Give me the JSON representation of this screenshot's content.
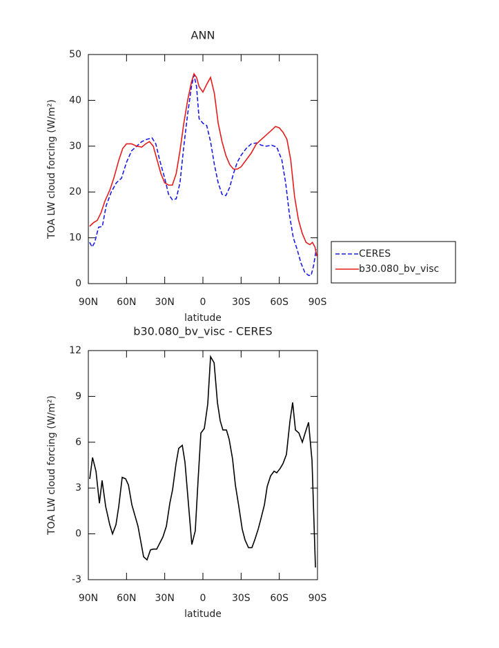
{
  "chart_data": [
    {
      "type": "line",
      "title": "ANN",
      "xlabel": "latitude",
      "ylabel": "TOA LW cloud forcing (W/m²)",
      "xlim": [
        90,
        -90
      ],
      "xticks": [
        {
          "value": 90,
          "label": "90N"
        },
        {
          "value": 60,
          "label": "60N"
        },
        {
          "value": 30,
          "label": "30N"
        },
        0,
        {
          "value": -30,
          "label": "30S"
        },
        {
          "value": -60,
          "label": "60S"
        },
        {
          "value": -90,
          "label": "90S"
        }
      ],
      "ylim": [
        0,
        50
      ],
      "yticks": [
        0,
        10,
        20,
        30,
        40,
        50
      ],
      "legend": "right",
      "series": [
        {
          "name": "CERES",
          "color": "#1a1ae6",
          "linestyle": "dashed",
          "x": [
            89,
            87,
            85,
            82,
            79,
            76,
            72,
            68,
            64,
            60,
            56,
            52,
            48,
            44,
            40,
            37,
            34,
            30,
            27,
            24,
            21,
            18,
            15,
            12,
            9,
            7,
            5,
            3,
            0,
            -3,
            -6,
            -9,
            -12,
            -15,
            -18,
            -21,
            -24,
            -27,
            -30,
            -34,
            -38,
            -42,
            -46,
            -50,
            -54,
            -58,
            -62,
            -65,
            -68,
            -71,
            -74,
            -77,
            -80,
            -83,
            -85,
            -87,
            -89
          ],
          "values": [
            9,
            8,
            9,
            12.3,
            12.5,
            17,
            20,
            22,
            23,
            26.5,
            29,
            30,
            31,
            31.5,
            31.8,
            30.5,
            27,
            23,
            19.5,
            18.3,
            18.5,
            22,
            30,
            37,
            43,
            45.5,
            43,
            36,
            35,
            34.5,
            31,
            26,
            22,
            19.5,
            19.2,
            21,
            24,
            26.5,
            28,
            29.5,
            30.5,
            30.7,
            30.2,
            30,
            30.2,
            29.8,
            27,
            22,
            15,
            10,
            7.5,
            4.5,
            2.5,
            1.8,
            1.8,
            4,
            7.5
          ]
        },
        {
          "name": "b30.080_bv_visc",
          "color": "#e61a1a",
          "linestyle": "solid",
          "x": [
            89,
            86,
            83,
            80,
            77,
            73,
            70,
            66,
            63,
            60,
            56,
            52,
            48,
            45,
            42,
            39,
            36,
            33,
            30,
            27,
            24,
            21,
            18,
            15,
            12,
            9,
            7,
            5,
            3,
            0,
            -3,
            -6,
            -9,
            -12,
            -15,
            -18,
            -21,
            -24,
            -27,
            -30,
            -34,
            -38,
            -42,
            -46,
            -50,
            -54,
            -57,
            -60,
            -63,
            -66,
            -69,
            -72,
            -75,
            -78,
            -81,
            -84,
            -86,
            -88,
            -89.5
          ],
          "values": [
            12.5,
            13.3,
            13.8,
            15.5,
            18,
            20.5,
            23,
            27,
            29.5,
            30.5,
            30.5,
            30,
            29.8,
            30.5,
            31,
            30,
            27,
            24,
            22,
            21.5,
            21.5,
            24,
            29,
            35,
            40,
            44,
            45.8,
            45,
            43,
            41.8,
            43.5,
            45,
            41.5,
            35,
            31,
            28,
            26,
            25,
            25,
            25.5,
            27,
            28.5,
            30.5,
            31.5,
            32.5,
            33.5,
            34.3,
            34,
            33,
            31.5,
            27,
            19,
            14,
            11,
            9,
            8.5,
            9,
            8,
            6
          ]
        }
      ]
    },
    {
      "type": "line",
      "title": "b30.080_bv_visc - CERES",
      "xlabel": "latitude",
      "ylabel": "TOA LW cloud forcing (W/m²)",
      "xlim": [
        90,
        -90
      ],
      "xticks": [
        {
          "value": 90,
          "label": "90N"
        },
        {
          "value": 60,
          "label": "60N"
        },
        {
          "value": 30,
          "label": "30N"
        },
        0,
        {
          "value": -30,
          "label": "30S"
        },
        {
          "value": -60,
          "label": "60S"
        },
        {
          "value": -90,
          "label": "90S"
        }
      ],
      "ylim": [
        -3,
        12
      ],
      "yticks": [
        -3,
        0,
        3,
        6,
        9,
        12
      ],
      "series": [
        {
          "color": "#000000",
          "linestyle": "solid",
          "x": [
            88.9,
            86.7,
            84,
            81.3,
            79.2,
            76.4,
            73.2,
            71,
            68.3,
            66.1,
            63.4,
            60.7,
            58.5,
            55.8,
            51,
            46.6,
            43.9,
            41.2,
            39,
            36.3,
            31.4,
            28.7,
            26,
            23.8,
            21.1,
            19,
            16.2,
            14.1,
            11.4,
            8.7,
            6,
            3.8,
            1.6,
            -1.1,
            -3.8,
            -6,
            -8.8,
            -11.4,
            -13.6,
            -15.7,
            -18.5,
            -20.6,
            -23.3,
            -25.5,
            -28.2,
            -30.9,
            -33.1,
            -35.8,
            -38.5,
            -40.7,
            -43.4,
            -45.6,
            -48.3,
            -50.5,
            -53.2,
            -55.9,
            -58,
            -60.8,
            -62.9,
            -65.6,
            -68.4,
            -70.5,
            -72.7,
            -75.4,
            -78.1,
            -80.3,
            -83,
            -85.7,
            -88.4
          ],
          "values": [
            3.6,
            5,
            4.1,
            2,
            3.5,
            1.8,
            0.6,
            0,
            0.6,
            1.8,
            3.7,
            3.6,
            3.2,
            1.9,
            0.5,
            -1.5,
            -1.7,
            -1.05,
            -1,
            -1,
            -0.2,
            0.5,
            2,
            2.9,
            4.6,
            5.6,
            5.8,
            4.7,
            2,
            -0.7,
            0.2,
            3.5,
            6.6,
            6.9,
            8.5,
            11.6,
            11.2,
            8.6,
            7.4,
            6.8,
            6.8,
            6.2,
            4.9,
            3.2,
            1.8,
            0.3,
            -0.4,
            -0.9,
            -0.9,
            -0.4,
            0.3,
            1,
            1.9,
            3.1,
            3.8,
            4.1,
            4,
            4.3,
            4.6,
            5.2,
            7.4,
            8.6,
            6.8,
            6.6,
            6,
            6.6,
            7.3,
            4.8,
            -2.2
          ]
        }
      ]
    }
  ]
}
